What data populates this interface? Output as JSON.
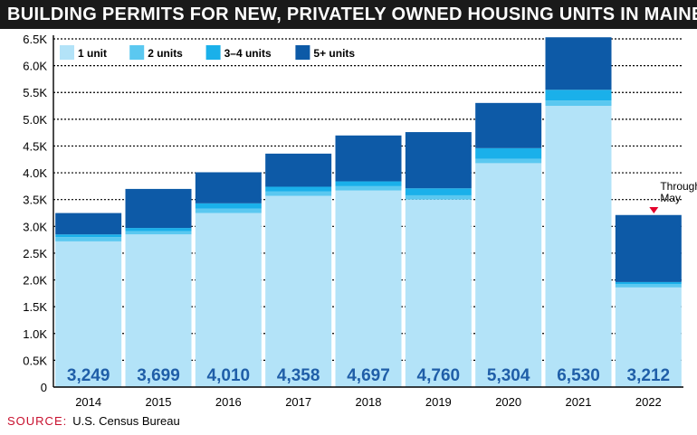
{
  "title": "BUILDING PERMITS FOR NEW, PRIVATELY OWNED HOUSING UNITS IN MAINE",
  "source": {
    "label": "SOURCE:",
    "text": "U.S. Census Bureau"
  },
  "colors": {
    "header_bg": "#1a1a1a",
    "total_label": "#1f5ea8",
    "note_marker": "#e4002b"
  },
  "chart_data": {
    "type": "bar",
    "stacked": true,
    "categories": [
      "2014",
      "2015",
      "2016",
      "2017",
      "2018",
      "2019",
      "2020",
      "2021",
      "2022"
    ],
    "series": [
      {
        "name": "1 unit",
        "color": "#b3e3f8",
        "values": [
          2720,
          2850,
          3250,
          3570,
          3670,
          3500,
          4180,
          5250,
          1860
        ]
      },
      {
        "name": "2 units",
        "color": "#5bc8f0",
        "values": [
          80,
          60,
          80,
          80,
          80,
          80,
          80,
          100,
          60
        ]
      },
      {
        "name": "3–4 units",
        "color": "#1ab0ea",
        "values": [
          50,
          60,
          100,
          90,
          90,
          130,
          200,
          200,
          40
        ]
      },
      {
        "name": "5+ units",
        "color": "#0d5aa7",
        "values": [
          399,
          729,
          580,
          618,
          857,
          1050,
          844,
          980,
          1252
        ]
      }
    ],
    "totals": [
      "3,249",
      "3,699",
      "4,010",
      "4,358",
      "4,697",
      "4,760",
      "5,304",
      "6,530",
      "3,212"
    ],
    "ylim": [
      0,
      6500
    ],
    "yticks": [
      {
        "value": 0,
        "label": "0"
      },
      {
        "value": 500,
        "label": "0.5K"
      },
      {
        "value": 1000,
        "label": "1.0K"
      },
      {
        "value": 1500,
        "label": "1.5K"
      },
      {
        "value": 2000,
        "label": "2.0K"
      },
      {
        "value": 2500,
        "label": "2.5K"
      },
      {
        "value": 3000,
        "label": "3.0K"
      },
      {
        "value": 3500,
        "label": "3.5K"
      },
      {
        "value": 4000,
        "label": "4.0K"
      },
      {
        "value": 4500,
        "label": "4.5K"
      },
      {
        "value": 5000,
        "label": "5.0K"
      },
      {
        "value": 5500,
        "label": "5.5K"
      },
      {
        "value": 6000,
        "label": "6.0K"
      },
      {
        "value": 6500,
        "label": "6.5K"
      }
    ],
    "grid": true,
    "legend_position": "top-left",
    "annotation": {
      "category": "2022",
      "lines": [
        "Through",
        "May"
      ]
    }
  }
}
